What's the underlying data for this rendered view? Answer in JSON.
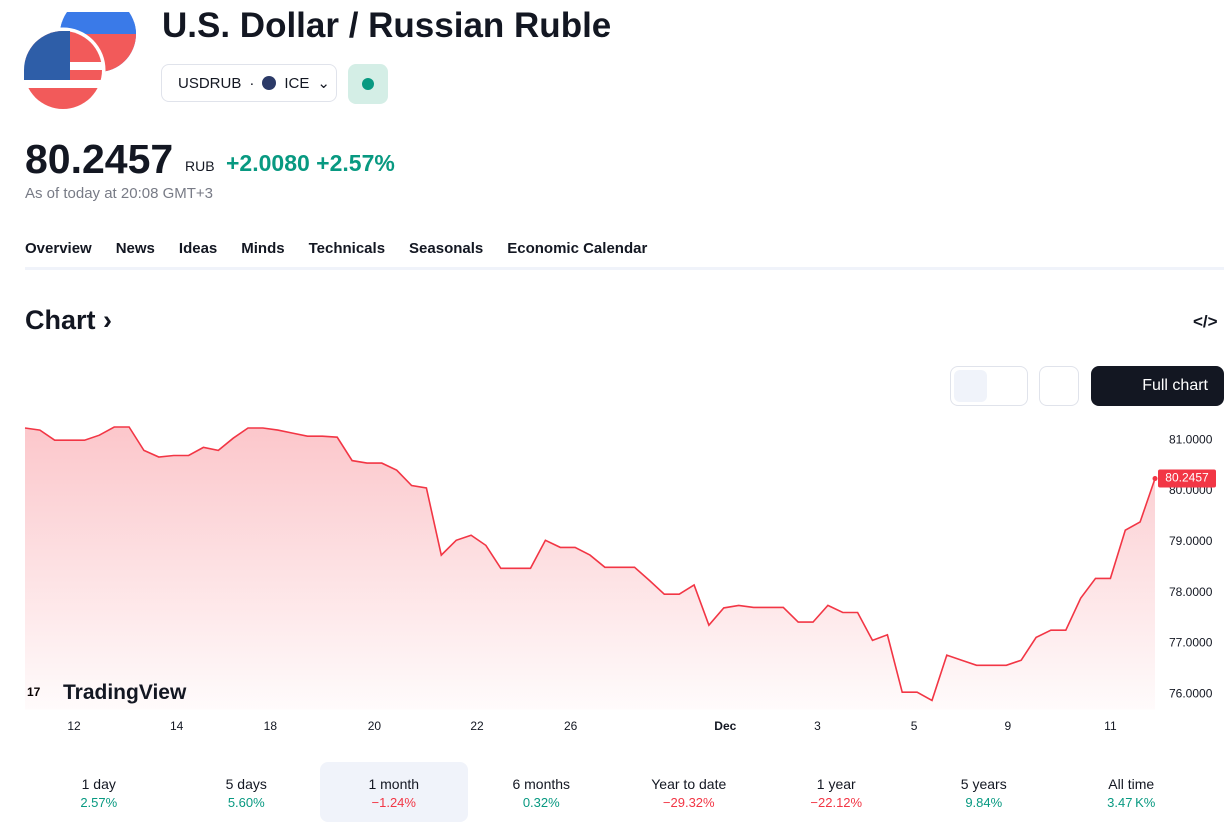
{
  "header": {
    "title": "U.S. Dollar / Russian Ruble",
    "symbol": "USDRUB",
    "exchange": "ICE"
  },
  "quote": {
    "price": "80.2457",
    "currency": "RUB",
    "change": "+2.0080",
    "change_percent": "+2.57%",
    "timestamp": "As of today at 20:08 GMT+3"
  },
  "tabs": [
    "Overview",
    "News",
    "Ideas",
    "Minds",
    "Technicals",
    "Seasonals",
    "Economic Calendar"
  ],
  "section": {
    "title": "Chart",
    "button": "Full chart",
    "watermark": "TradingView"
  },
  "chart_data": {
    "type": "line",
    "color": "#f23645",
    "values": [
      81.24,
      81.2,
      81.0,
      81.0,
      81.0,
      81.1,
      81.26,
      81.26,
      80.8,
      80.67,
      80.7,
      80.7,
      80.86,
      80.8,
      81.04,
      81.24,
      81.24,
      81.2,
      81.14,
      81.08,
      81.08,
      81.06,
      80.6,
      80.55,
      80.55,
      80.41,
      80.11,
      80.06,
      78.74,
      79.03,
      79.13,
      78.93,
      78.48,
      78.48,
      78.48,
      79.03,
      78.89,
      78.89,
      78.74,
      78.5,
      78.5,
      78.5,
      78.24,
      77.97,
      77.97,
      78.15,
      77.36,
      77.7,
      77.75,
      77.71,
      77.71,
      77.71,
      77.42,
      77.42,
      77.75,
      77.61,
      77.61,
      77.06,
      77.17,
      76.04,
      76.04,
      75.88,
      76.77,
      76.67,
      76.57,
      76.57,
      76.57,
      76.67,
      77.12,
      77.26,
      77.26,
      77.89,
      78.28,
      78.28,
      79.23,
      79.39,
      80.2457
    ],
    "xlim": [
      0,
      76
    ],
    "xticks": [
      {
        "value": 3.3,
        "label": "12"
      },
      {
        "value": 10.2,
        "label": "14"
      },
      {
        "value": 16.5,
        "label": "18"
      },
      {
        "value": 23.5,
        "label": "20"
      },
      {
        "value": 30.4,
        "label": "22"
      },
      {
        "value": 36.7,
        "label": "26"
      },
      {
        "value": 47.1,
        "label": "Dec"
      },
      {
        "value": 53.3,
        "label": "3"
      },
      {
        "value": 59.8,
        "label": "5"
      },
      {
        "value": 66.1,
        "label": "9"
      },
      {
        "value": 73.0,
        "label": "11"
      }
    ],
    "ylim": [
      75.7,
      81.3
    ],
    "yticks": [
      {
        "value": 76,
        "label": "76.0000"
      },
      {
        "value": 77,
        "label": "77.0000"
      },
      {
        "value": 78,
        "label": "78.0000"
      },
      {
        "value": 79,
        "label": "79.0000"
      },
      {
        "value": 80,
        "label": "80.0000"
      },
      {
        "value": 81,
        "label": "81.0000"
      }
    ]
  },
  "periods": [
    {
      "label": "1 day",
      "change": "2.57%"
    },
    {
      "label": "5 days",
      "change": "5.60%"
    },
    {
      "label": "1 month",
      "change": "−1.24%"
    },
    {
      "label": "6 months",
      "change": "0.32%"
    },
    {
      "label": "Year to date",
      "change": "−29.32%"
    },
    {
      "label": "1 year",
      "change": "−22.12%"
    },
    {
      "label": "5 years",
      "change": "9.84%"
    },
    {
      "label": "All time",
      "change": "3.47 K%"
    }
  ]
}
